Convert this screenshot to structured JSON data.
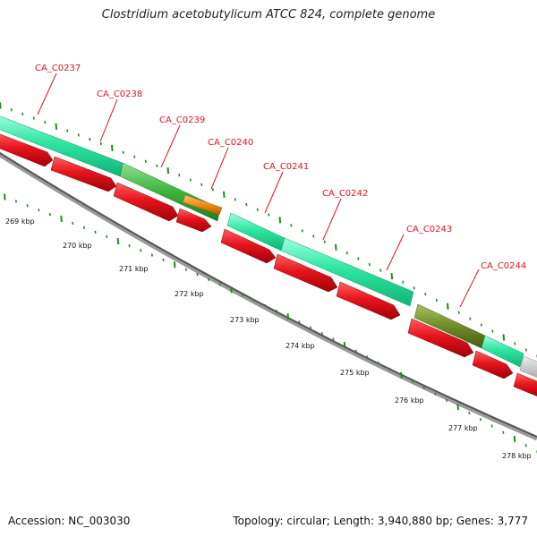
{
  "title": "Clostridium acetobutylicum ATCC 824, complete genome",
  "footer": {
    "accession": "Accession: NC_003030",
    "summary": "Topology: circular; Length: 3,940,880 bp; Genes: 3,777"
  },
  "scale_ticks": [
    "269 kbp",
    "270 kbp",
    "271 kbp",
    "272 kbp",
    "273 kbp",
    "274 kbp",
    "275 kbp",
    "276 kbp",
    "277 kbp",
    "278 kbp"
  ],
  "gene_labels": [
    "CA_C0237",
    "CA_C0238",
    "CA_C0239",
    "CA_C0240",
    "CA_C0241",
    "CA_C0242",
    "CA_C0243",
    "CA_C0244"
  ],
  "colors": {
    "cds_forward": "#e6141e",
    "feature_cyan": "#2ee6a0",
    "feature_green": "#3cb43c",
    "feature_orange": "#f08c14",
    "feature_olive": "#6e8c28",
    "feature_gray": "#c8c8c8",
    "backbone": "#646464",
    "tick": "#228b22",
    "label": "#e0141e"
  }
}
